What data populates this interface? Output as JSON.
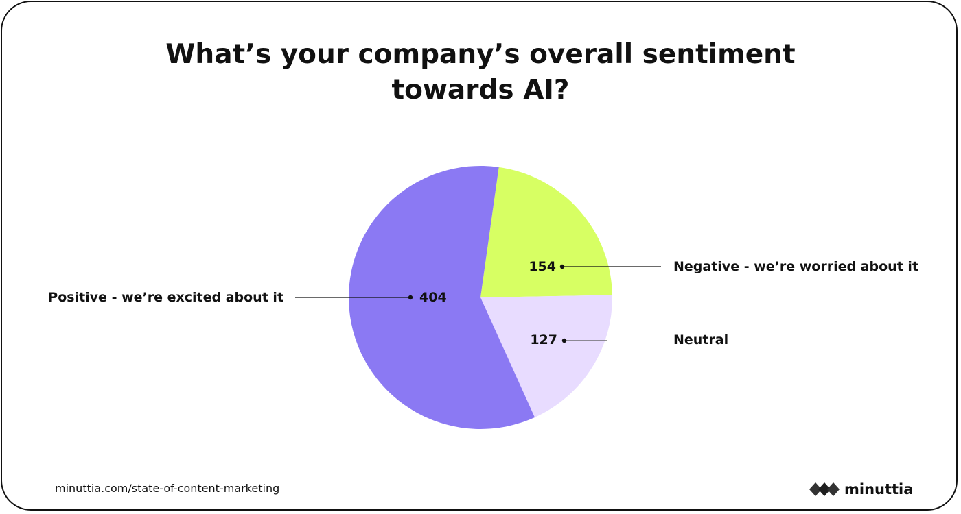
{
  "chart_data": {
    "type": "pie",
    "title_lines": [
      "What’s your company’s overall sentiment",
      "towards AI?"
    ],
    "start_angle_deg": 8,
    "slices": [
      {
        "label": "Negative - we’re worried about it",
        "value": 154,
        "color": "#D7FF63"
      },
      {
        "label": "Neutral",
        "value": 127,
        "color": "#E8DCFF"
      },
      {
        "label": "Positive -  we’re excited about it",
        "value": 404,
        "color": "#8B79F3"
      }
    ]
  },
  "footer": {
    "url": "minuttia.com/state-of-content-marketing",
    "brand_name": "minuttia",
    "brand_icon": "diamonds-logo-icon"
  }
}
